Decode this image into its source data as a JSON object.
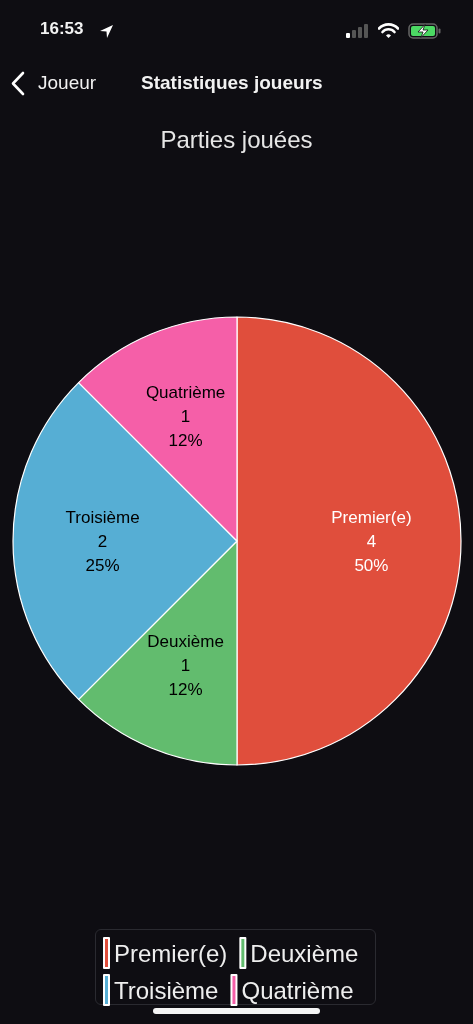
{
  "chart_data": {
    "type": "pie",
    "title": "Parties jouées",
    "annotations": [
      "16:53",
      "Joueur",
      "Statistiques joueurs"
    ],
    "categories": [
      "Premier(e)",
      "Deuxième",
      "Troisième",
      "Quatrième"
    ],
    "values": [
      4,
      1,
      2,
      1
    ],
    "colors": [
      "#e04e3c",
      "#62bc6e",
      "#56aed4",
      "#f55fa8"
    ],
    "value_labels": [
      "4\n50%",
      "1\n12%",
      "2\n25%",
      "1\n12%"
    ],
    "legend": "bottom"
  }
}
